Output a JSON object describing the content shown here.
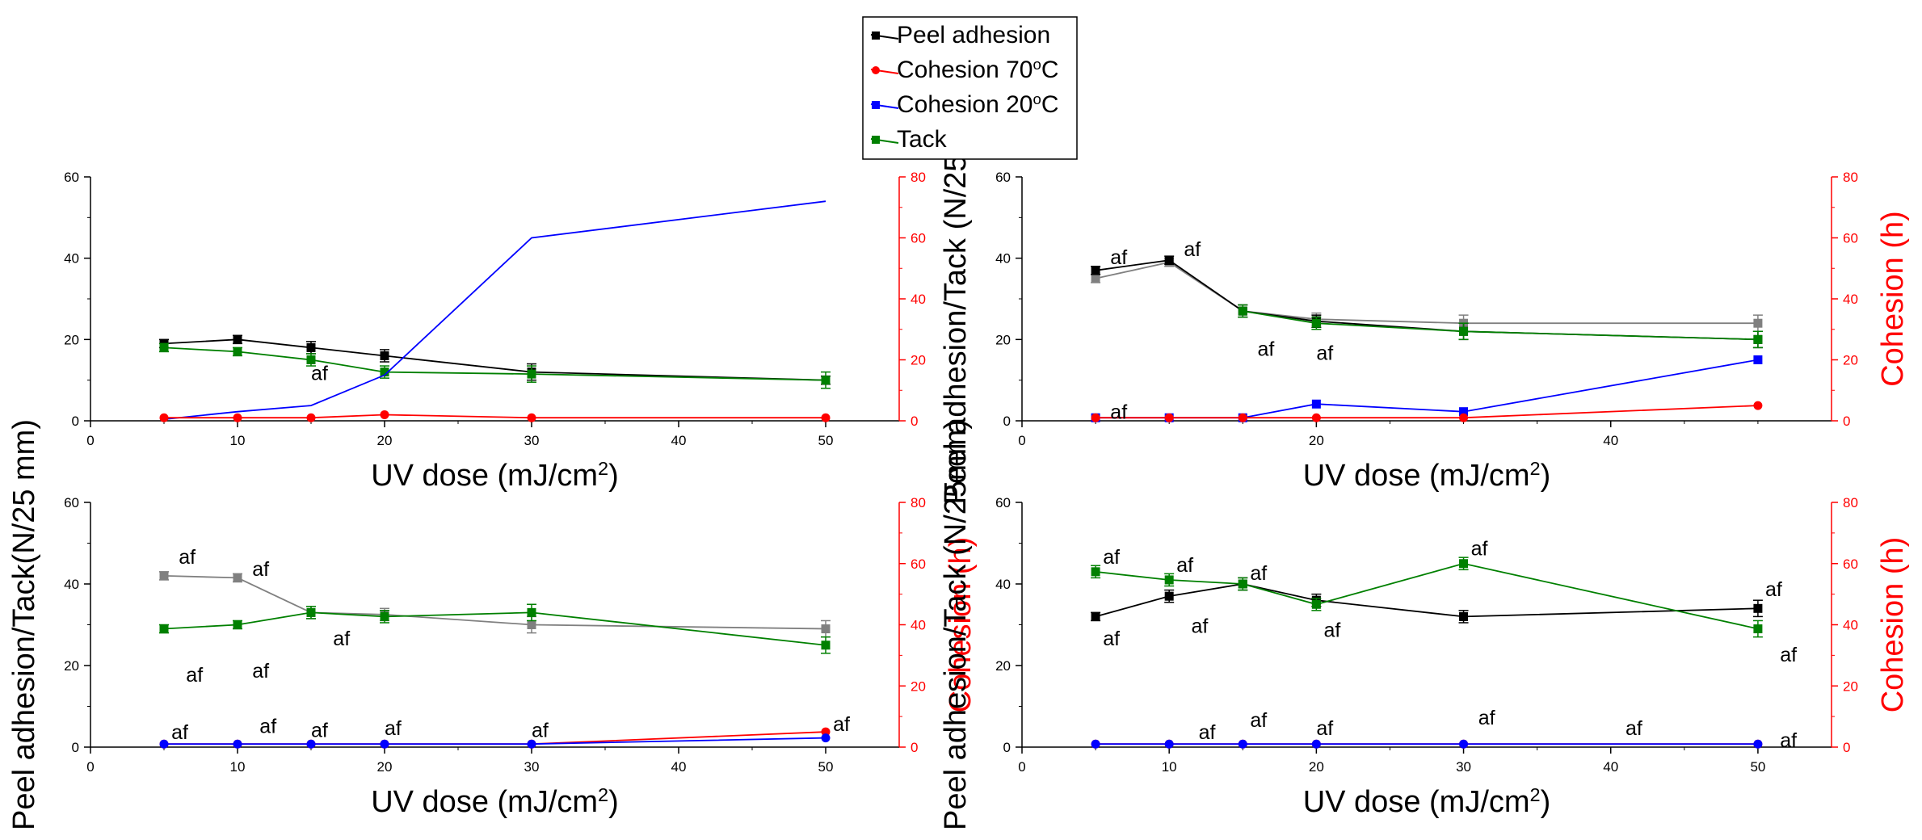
{
  "colors": {
    "peel": "#000000",
    "peel_alt": "#808080",
    "cohesion70": "#ff0000",
    "cohesion20": "#0000ff",
    "tack": "#008000",
    "right_axis": "#ff0000",
    "axis": "#000000"
  },
  "legend": {
    "entries": [
      {
        "key": "peel",
        "label": "Peel adhesion",
        "marker": "square"
      },
      {
        "key": "cohesion70",
        "label_main": "Cohesion 70",
        "label_sup": "o",
        "label_end": "C",
        "marker": "circle"
      },
      {
        "key": "cohesion20",
        "label_main": "Cohesion 20",
        "label_sup": "o",
        "label_end": "C",
        "marker": "square"
      },
      {
        "key": "tack",
        "label": "Tack",
        "marker": "square"
      }
    ]
  },
  "labels": {
    "xlabel_main": "UV dose (mJ/cm",
    "xlabel_sup": "2",
    "xlabel_end": ")",
    "ylabel_left_a": "Peel adhesion/Tack(N/25 mm)",
    "ylabel_left_b": "Peel adhesion/Tack (N/25mm)",
    "ylabel_right": "Cohesion (h)"
  },
  "chart_data": [
    {
      "type": "line",
      "panel": "top-left",
      "xlim": [
        0,
        55
      ],
      "ylim": [
        0,
        60
      ],
      "y2lim": [
        0,
        80
      ],
      "xticks": [
        0,
        10,
        20,
        30,
        40,
        50
      ],
      "yticks": [
        0,
        20,
        40,
        60
      ],
      "y2ticks": [
        0,
        20,
        40,
        60,
        80
      ],
      "x_axis_label": true,
      "y_axis_label": "",
      "y2_axis_label": "",
      "series": [
        {
          "name": "Peel adhesion",
          "color_key": "peel",
          "marker": "square",
          "axis": "left",
          "x": [
            5,
            10,
            15,
            20,
            30,
            50
          ],
          "y": [
            19,
            20,
            18,
            16,
            12,
            10
          ],
          "err": [
            1,
            1,
            1.5,
            1.5,
            2,
            1
          ]
        },
        {
          "name": "Tack",
          "color_key": "tack",
          "marker": "square",
          "axis": "left",
          "x": [
            5,
            10,
            15,
            20,
            30,
            50
          ],
          "y": [
            18,
            17,
            15,
            12,
            11.5,
            10
          ],
          "err": [
            1,
            1,
            1.5,
            1.5,
            2,
            2
          ]
        },
        {
          "name": "Cohesion 20°C",
          "color_key": "cohesion20",
          "marker": "none",
          "axis": "right",
          "x": [
            5,
            10,
            15,
            20,
            30,
            50
          ],
          "y": [
            0.5,
            3,
            5,
            15,
            60,
            72
          ],
          "err": []
        },
        {
          "name": "Cohesion 70°C",
          "color_key": "cohesion70",
          "marker": "circle",
          "axis": "right",
          "x": [
            5,
            10,
            15,
            20,
            30,
            50
          ],
          "y": [
            1,
            1,
            1,
            2,
            1,
            1
          ],
          "err": []
        }
      ],
      "annotations": [
        {
          "text": "af",
          "x": 15,
          "y": 10
        }
      ]
    },
    {
      "type": "line",
      "panel": "top-right",
      "xlim": [
        0,
        55
      ],
      "ylim": [
        0,
        60
      ],
      "y2lim": [
        0,
        80
      ],
      "xticks": [
        0,
        20,
        40
      ],
      "yticks": [
        0,
        20,
        40,
        60
      ],
      "y2ticks": [
        0,
        20,
        40,
        60,
        80
      ],
      "x_axis_label": true,
      "y_axis_label": "ylabel_left_b",
      "y2_axis_label": "ylabel_right",
      "series": [
        {
          "name": "Peel adhesion (grey)",
          "color_key": "peel_alt",
          "marker": "square",
          "axis": "left",
          "x": [
            5,
            10,
            15,
            20,
            30,
            50
          ],
          "y": [
            35,
            39,
            27,
            25,
            24,
            24
          ],
          "err": [
            1,
            1,
            1.5,
            1.5,
            2,
            2
          ]
        },
        {
          "name": "Peel adhesion",
          "color_key": "peel",
          "marker": "square",
          "axis": "left",
          "x": [
            5,
            10,
            15,
            20,
            30,
            50
          ],
          "y": [
            37,
            39.5,
            27,
            24.5,
            22,
            20
          ],
          "err": [
            1,
            1,
            1.5,
            1.5,
            2,
            2
          ]
        },
        {
          "name": "Tack",
          "color_key": "tack",
          "marker": "square",
          "axis": "left",
          "x": [
            15,
            20,
            30,
            50
          ],
          "y": [
            27,
            24,
            22,
            20
          ],
          "err": [
            1.5,
            1.5,
            2,
            2
          ]
        },
        {
          "name": "Cohesion 20°C",
          "color_key": "cohesion20",
          "marker": "square",
          "axis": "right",
          "x": [
            5,
            10,
            15,
            20,
            30,
            50
          ],
          "y": [
            1,
            1,
            1,
            5.5,
            3,
            20
          ],
          "err": []
        },
        {
          "name": "Cohesion 70°C",
          "color_key": "cohesion70",
          "marker": "circle",
          "axis": "right",
          "x": [
            5,
            10,
            15,
            20,
            30,
            50
          ],
          "y": [
            1,
            1,
            1,
            1,
            1,
            5
          ],
          "err": []
        }
      ],
      "annotations": [
        {
          "text": "af",
          "x": 6,
          "y": 38.5
        },
        {
          "text": "af",
          "x": 11,
          "y": 40.5
        },
        {
          "text": "af",
          "x": 16,
          "y": 16
        },
        {
          "text": "af",
          "x": 20,
          "y": 15
        },
        {
          "text": "af",
          "x": 6,
          "y": 0.5
        }
      ]
    },
    {
      "type": "line",
      "panel": "bottom-left",
      "xlim": [
        0,
        55
      ],
      "ylim": [
        0,
        60
      ],
      "y2lim": [
        0,
        80
      ],
      "xticks": [
        0,
        10,
        20,
        30,
        40,
        50
      ],
      "yticks": [
        0,
        20,
        40,
        60
      ],
      "y2ticks": [
        0,
        20,
        40,
        60,
        80
      ],
      "x_axis_label": true,
      "y_axis_label": "ylabel_left_a",
      "y2_axis_label": "ylabel_right",
      "series": [
        {
          "name": "Peel adhesion",
          "color_key": "peel_alt",
          "marker": "square",
          "axis": "left",
          "x": [
            5,
            10,
            15,
            20,
            30,
            50
          ],
          "y": [
            42,
            41.5,
            33,
            32.5,
            30,
            29
          ],
          "err": [
            1,
            1,
            1.5,
            1.5,
            2,
            2
          ]
        },
        {
          "name": "Tack",
          "color_key": "tack",
          "marker": "square",
          "axis": "left",
          "x": [
            5,
            10,
            15,
            20,
            30,
            50
          ],
          "y": [
            29,
            30,
            33,
            32,
            33,
            25
          ],
          "err": [
            1,
            1,
            1.5,
            1.5,
            2,
            2
          ]
        },
        {
          "name": "Cohesion 70°C",
          "color_key": "cohesion70",
          "marker": "circle",
          "axis": "right",
          "x": [
            5,
            10,
            15,
            20,
            30,
            50
          ],
          "y": [
            1,
            1,
            1,
            1,
            1,
            5
          ],
          "err": []
        },
        {
          "name": "Cohesion 20°C",
          "color_key": "cohesion20",
          "marker": "circle",
          "axis": "right",
          "x": [
            5,
            10,
            15,
            20,
            30,
            50
          ],
          "y": [
            1,
            1,
            1,
            1,
            1,
            3
          ],
          "err": []
        }
      ],
      "annotations": [
        {
          "text": "af",
          "x": 6,
          "y": 45
        },
        {
          "text": "af",
          "x": 11,
          "y": 42
        },
        {
          "text": "af",
          "x": 6.5,
          "y": 16
        },
        {
          "text": "af",
          "x": 11,
          "y": 17
        },
        {
          "text": "af",
          "x": 16.5,
          "y": 25
        },
        {
          "text": "af",
          "x": 5.5,
          "y": 2
        },
        {
          "text": "af",
          "x": 11.5,
          "y": 3.5
        },
        {
          "text": "af",
          "x": 15,
          "y": 2.5
        },
        {
          "text": "af",
          "x": 20,
          "y": 3
        },
        {
          "text": "af",
          "x": 30,
          "y": 2.5
        },
        {
          "text": "af",
          "x": 50.5,
          "y": 4
        }
      ]
    },
    {
      "type": "line",
      "panel": "bottom-right",
      "xlim": [
        0,
        55
      ],
      "ylim": [
        0,
        60
      ],
      "y2lim": [
        0,
        80
      ],
      "xticks": [
        0,
        10,
        20,
        30,
        40,
        50
      ],
      "yticks": [
        0,
        20,
        40,
        60
      ],
      "y2ticks": [
        0,
        20,
        40,
        60,
        80
      ],
      "x_axis_label": true,
      "y_axis_label": "ylabel_left_b",
      "y2_axis_label": "ylabel_right",
      "series": [
        {
          "name": "Peel adhesion",
          "color_key": "peel",
          "marker": "square",
          "axis": "left",
          "x": [
            5,
            10,
            15,
            20,
            30,
            50
          ],
          "y": [
            32,
            37,
            40,
            36,
            32,
            34
          ],
          "err": [
            1,
            1.5,
            1.5,
            1.5,
            1.5,
            2
          ]
        },
        {
          "name": "Tack",
          "color_key": "tack",
          "marker": "square",
          "axis": "left",
          "x": [
            5,
            10,
            15,
            20,
            30,
            50
          ],
          "y": [
            43,
            41,
            40,
            35,
            45,
            29
          ],
          "err": [
            1.5,
            1.5,
            1.5,
            1.5,
            1.5,
            2
          ]
        },
        {
          "name": "Cohesion 70°C",
          "color_key": "cohesion70",
          "marker": "circle",
          "axis": "right",
          "x": [
            5,
            10,
            15,
            20,
            30,
            50
          ],
          "y": [
            1,
            1,
            1,
            1,
            1,
            1
          ],
          "err": []
        },
        {
          "name": "Cohesion 20°C",
          "color_key": "cohesion20",
          "marker": "circle",
          "axis": "right",
          "x": [
            5,
            10,
            15,
            20,
            30,
            50
          ],
          "y": [
            1,
            1,
            1,
            1,
            1,
            1
          ],
          "err": []
        }
      ],
      "annotations": [
        {
          "text": "af",
          "x": 5.5,
          "y": 45
        },
        {
          "text": "af",
          "x": 10.5,
          "y": 43
        },
        {
          "text": "af",
          "x": 15.5,
          "y": 41
        },
        {
          "text": "af",
          "x": 5.5,
          "y": 25
        },
        {
          "text": "af",
          "x": 11.5,
          "y": 28
        },
        {
          "text": "af",
          "x": 20.5,
          "y": 27
        },
        {
          "text": "af",
          "x": 30.5,
          "y": 47
        },
        {
          "text": "af",
          "x": 50.5,
          "y": 37
        },
        {
          "text": "af",
          "x": 51.5,
          "y": 21
        },
        {
          "text": "af",
          "x": 12,
          "y": 2
        },
        {
          "text": "af",
          "x": 15.5,
          "y": 5
        },
        {
          "text": "af",
          "x": 20,
          "y": 3
        },
        {
          "text": "af",
          "x": 31,
          "y": 5.5
        },
        {
          "text": "af",
          "x": 41,
          "y": 3
        },
        {
          "text": "af",
          "x": 51.5,
          "y": 0
        }
      ]
    }
  ]
}
